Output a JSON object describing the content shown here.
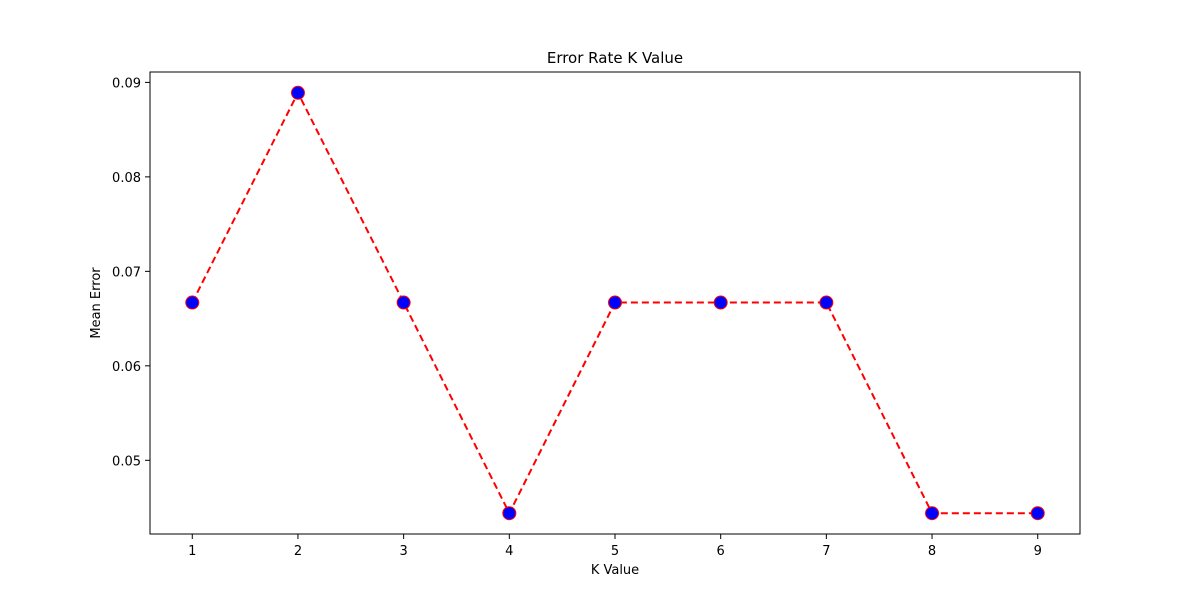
{
  "chart_data": {
    "type": "line",
    "title": "Error Rate K Value",
    "xlabel": "K Value",
    "ylabel": "Mean Error",
    "x": [
      1,
      2,
      3,
      4,
      5,
      6,
      7,
      8,
      9
    ],
    "series": [
      {
        "values": [
          0.0667,
          0.0889,
          0.0667,
          0.0444,
          0.0667,
          0.0667,
          0.0667,
          0.0444,
          0.0444
        ],
        "line_color": "#ff0000",
        "line_style": "dashed",
        "marker": "circle",
        "marker_face_color": "#0000ff",
        "marker_edge_color": "#ff0000"
      }
    ],
    "xlim": [
      0.6,
      9.4
    ],
    "ylim": [
      0.0422,
      0.0911
    ],
    "xticks": [
      1,
      2,
      3,
      4,
      5,
      6,
      7,
      8,
      9
    ],
    "xtick_labels": [
      "1",
      "2",
      "3",
      "4",
      "5",
      "6",
      "7",
      "8",
      "9"
    ],
    "yticks": [
      0.05,
      0.06,
      0.07,
      0.08,
      0.09
    ],
    "ytick_labels": [
      "0.05",
      "0.06",
      "0.07",
      "0.08",
      "0.09"
    ],
    "grid": false,
    "legend": "none"
  }
}
